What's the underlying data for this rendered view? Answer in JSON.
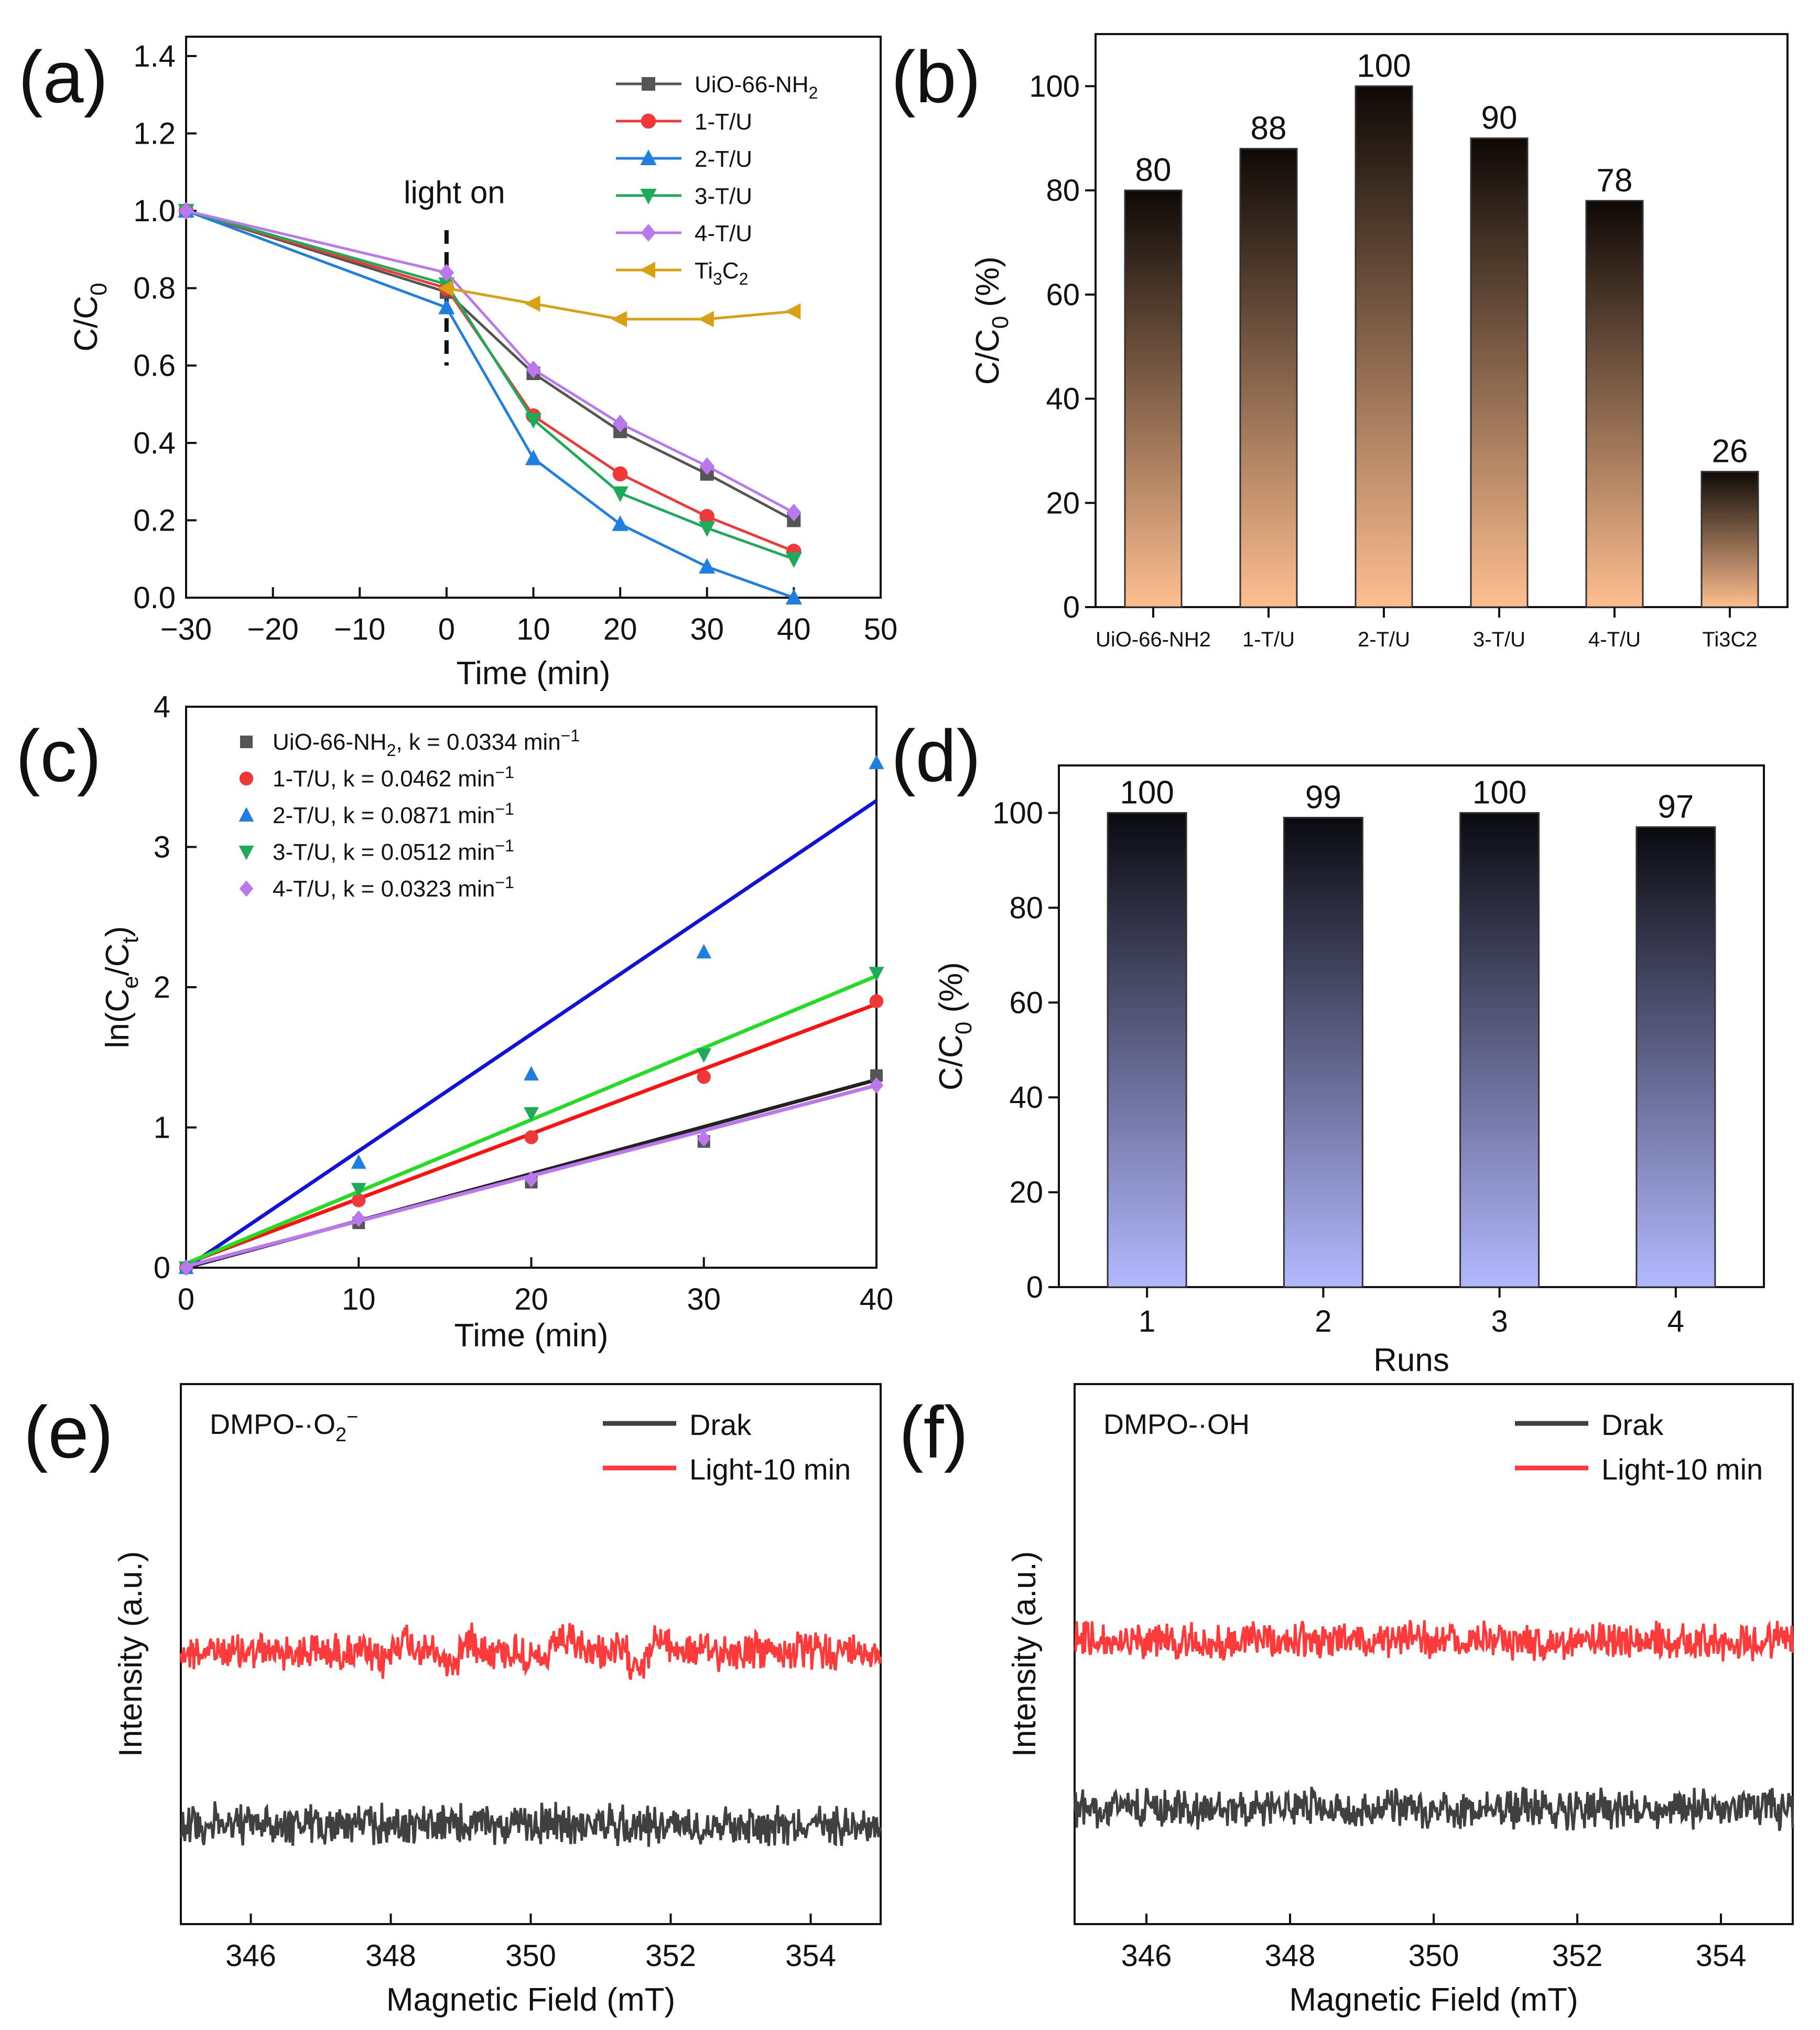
{
  "panels": {
    "a": {
      "letter": "(a)",
      "chart_data": {
        "type": "line",
        "xlabel": "Time (min)",
        "ylabel": "C/C",
        "ylabel_sub": "0",
        "xlim": [
          -30,
          50
        ],
        "ylim": [
          0,
          1.45
        ],
        "xticks": [
          -30,
          -20,
          -10,
          0,
          10,
          20,
          30,
          40,
          50
        ],
        "xtick_labels": [
          "−30",
          "−20",
          "−10",
          "0",
          "10",
          "20",
          "30",
          "40",
          "50"
        ],
        "yticks": [
          0.0,
          0.2,
          0.4,
          0.6,
          0.8,
          1.0,
          1.2,
          1.4
        ],
        "ytick_labels": [
          "0.0",
          "0.2",
          "0.4",
          "0.6",
          "0.8",
          "1.0",
          "1.2",
          "1.4"
        ],
        "annotation": "light on",
        "annotation_x": 0,
        "legend_position": "top-right",
        "grid": false,
        "x": [
          -30,
          0,
          10,
          20,
          30,
          40
        ],
        "series": [
          {
            "name": "UiO-66-NH",
            "name_sub": "2",
            "color": "#555555",
            "marker": "square",
            "values": [
              1.0,
              0.79,
              0.58,
              0.43,
              0.32,
              0.2
            ]
          },
          {
            "name": "1-T/U",
            "name_sub": "",
            "color": "#f03838",
            "marker": "circle",
            "values": [
              1.0,
              0.8,
              0.47,
              0.32,
              0.21,
              0.12
            ]
          },
          {
            "name": "2-T/U",
            "name_sub": "",
            "color": "#1f7fe0",
            "marker": "triangle-up",
            "values": [
              1.0,
              0.75,
              0.36,
              0.19,
              0.08,
              0.0
            ]
          },
          {
            "name": "3-T/U",
            "name_sub": "",
            "color": "#1faa59",
            "marker": "triangle-down",
            "values": [
              1.0,
              0.81,
              0.46,
              0.27,
              0.18,
              0.1
            ]
          },
          {
            "name": "4-T/U",
            "name_sub": "",
            "color": "#bb77ee",
            "marker": "diamond",
            "values": [
              1.0,
              0.84,
              0.59,
              0.45,
              0.34,
              0.22
            ]
          },
          {
            "name": "Ti",
            "name_sub": "3",
            "name_mid": "C",
            "name_sub2": "2",
            "color": "#d9a012",
            "marker": "triangle-left",
            "values": [
              null,
              0.8,
              0.76,
              0.72,
              0.72,
              0.74
            ]
          }
        ]
      }
    },
    "b": {
      "letter": "(b)",
      "chart_data": {
        "type": "bar",
        "ylabel": "C/C",
        "ylabel_sub": "0",
        "ylabel_suffix": " (%)",
        "ylim": [
          0,
          110
        ],
        "yticks": [
          0,
          20,
          40,
          60,
          80,
          100
        ],
        "categories": [
          "UiO-66-NH2",
          "1-T/U",
          "2-T/U",
          "3-T/U",
          "4-T/U",
          "Ti3C2"
        ],
        "values": [
          80,
          88,
          100,
          90,
          78,
          26
        ],
        "data_labels": [
          "80",
          "88",
          "100",
          "90",
          "78",
          "26"
        ],
        "gradient_top": "#0e0906",
        "gradient_bottom": "#ffbf90"
      }
    },
    "c": {
      "letter": "(c)",
      "chart_data": {
        "type": "scatter",
        "xlabel": "Time (min)",
        "ylabel": "ln(C",
        "ylabel_sub1": "e",
        "ylabel_mid": "/C",
        "ylabel_sub2": "t",
        "ylabel_end": ")",
        "xlim": [
          0,
          40
        ],
        "ylim": [
          0,
          4
        ],
        "xticks": [
          0,
          10,
          20,
          30,
          40
        ],
        "yticks": [
          0,
          1,
          2,
          3,
          4
        ],
        "legend_position": "top-left",
        "x": [
          0,
          10,
          20,
          30,
          40
        ],
        "series": [
          {
            "name": "UiO-66-NH",
            "name_sub": "2",
            "k_text": ", k = 0.0334 min",
            "sup": "−1",
            "color": "#555555",
            "fit_color": "#222222",
            "marker": "square",
            "values": [
              0,
              0.32,
              0.61,
              0.9,
              1.37
            ],
            "fit": [
              0.0,
              1.34
            ]
          },
          {
            "name": "1-T/U",
            "name_sub": "",
            "k_text": ", k = 0.0462 min",
            "sup": "−1",
            "color": "#f03838",
            "fit_color": "#ff1111",
            "marker": "circle",
            "values": [
              0,
              0.48,
              0.93,
              1.36,
              1.9
            ],
            "fit": [
              0.03,
              1.88
            ]
          },
          {
            "name": "2-T/U",
            "name_sub": "",
            "k_text": ", k = 0.0871 min",
            "sup": "−1",
            "color": "#1f7fe0",
            "fit_color": "#1111dd",
            "marker": "triangle-up",
            "values": [
              0,
              0.75,
              1.38,
              2.25,
              3.6
            ],
            "fit": [
              -0.15,
              3.33
            ]
          },
          {
            "name": "3-T/U",
            "name_sub": "",
            "k_text": ", k = 0.0512 min",
            "sup": "−1",
            "color": "#1faa59",
            "fit_color": "#22dd22",
            "marker": "triangle-down",
            "values": [
              0,
              0.56,
              1.1,
              1.52,
              2.1
            ],
            "fit": [
              0.03,
              2.08
            ]
          },
          {
            "name": "4-T/U",
            "name_sub": "",
            "k_text": ", k = 0.0323 min",
            "sup": "−1",
            "color": "#bb77ee",
            "fit_color": "#bb77ee",
            "marker": "diamond",
            "values": [
              0,
              0.35,
              0.63,
              0.92,
              1.3
            ],
            "fit": [
              0.01,
              1.3
            ]
          }
        ]
      }
    },
    "d": {
      "letter": "(d)",
      "chart_data": {
        "type": "bar",
        "xlabel": "Runs",
        "ylabel": "C/C",
        "ylabel_sub": "0",
        "ylabel_suffix": " (%)",
        "ylim": [
          0,
          110
        ],
        "yticks": [
          0,
          20,
          40,
          60,
          80,
          100
        ],
        "categories": [
          "1",
          "2",
          "3",
          "4"
        ],
        "values": [
          100,
          99,
          100,
          97
        ],
        "data_labels": [
          "100",
          "99",
          "100",
          "97"
        ],
        "gradient_top": "#0a0a10",
        "gradient_bottom": "#b3b9ff"
      }
    },
    "e": {
      "letter": "(e)",
      "chart_data": {
        "type": "line",
        "xlabel": "Magnetic Field (mT)",
        "ylabel": "Intensity (a.u.)",
        "xlim": [
          345,
          355
        ],
        "xticks": [
          346,
          348,
          350,
          352,
          354
        ],
        "title_prefix": "DMPO-·O",
        "title_sub": "2",
        "title_sup": "−",
        "legend_position": "top-right",
        "peaks": [
          348,
          349,
          350.3,
          351.7
        ],
        "series": [
          {
            "name": "Drak",
            "color": "#404040"
          },
          {
            "name": "Light-10 min",
            "color": "#ff3a3a"
          }
        ]
      }
    },
    "f": {
      "letter": "(f)",
      "chart_data": {
        "type": "line",
        "xlabel": "Magnetic Field (mT)",
        "ylabel": "Intensity (a.u.)",
        "xlim": [
          345,
          355
        ],
        "xticks": [
          346,
          348,
          350,
          352,
          354
        ],
        "title_prefix": "DMPO-·OH",
        "title_sub": "",
        "title_sup": "",
        "legend_position": "top-right",
        "series": [
          {
            "name": "Drak",
            "color": "#404040"
          },
          {
            "name": "Light-10 min",
            "color": "#ff3a3a"
          }
        ]
      }
    }
  }
}
